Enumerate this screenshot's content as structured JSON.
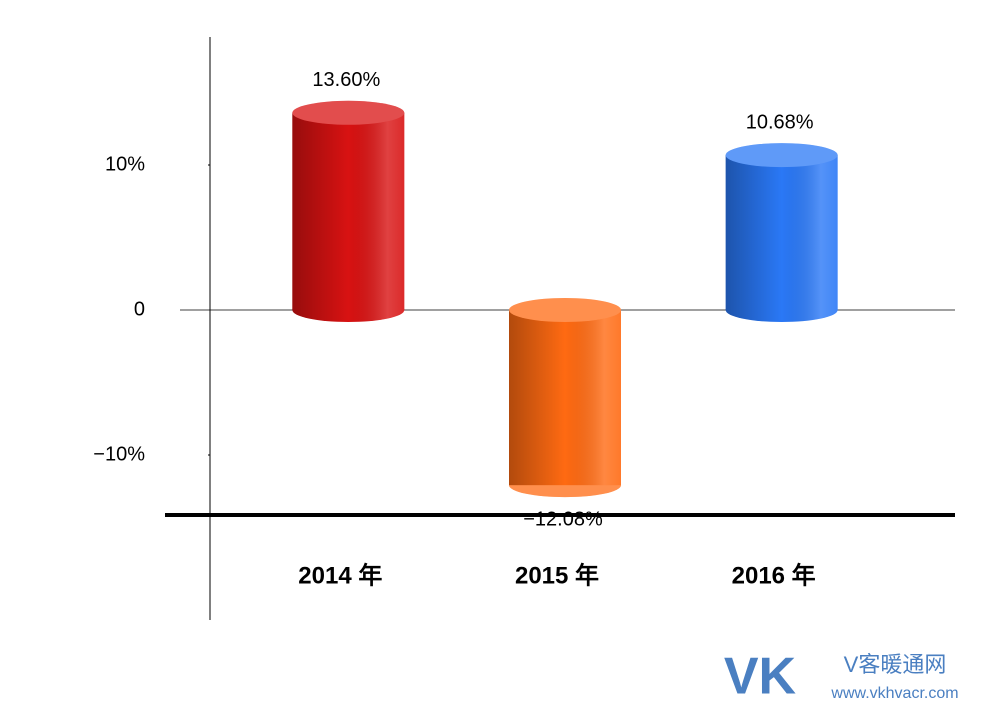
{
  "chart_data": {
    "type": "bar",
    "style": "cylinder",
    "categories": [
      "2014 年",
      "2015 年",
      "2016 年"
    ],
    "values": [
      13.6,
      -12.08,
      10.68
    ],
    "value_labels": [
      "13.60%",
      "−12.08%",
      "10.68%"
    ],
    "colors": [
      "#d81212",
      "#ff6a12",
      "#2a78f6"
    ],
    "ylim": [
      -14,
      18
    ],
    "yticks": [
      {
        "value": 10,
        "label": "10%"
      },
      {
        "value": 0,
        "label": "0"
      },
      {
        "value": -10,
        "label": "−10%"
      }
    ],
    "grid": false,
    "watermark": {
      "logo": "VK",
      "name": "V客暖通网",
      "url": "www.vkhvacr.com"
    }
  }
}
